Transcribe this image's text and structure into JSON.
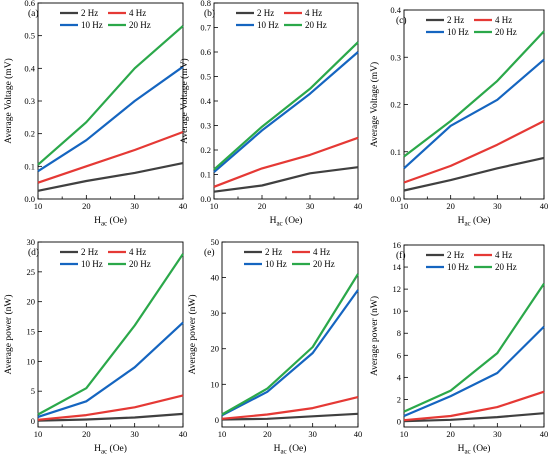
{
  "chart_data": [
    {
      "type": "line",
      "panel_label": "(a)",
      "xlabel": "H",
      "xlabel_sub": "ac",
      "xlabel_unit": " (Oe)",
      "ylabel": "Average Voltage (mV)",
      "x": [
        10,
        20,
        30,
        40
      ],
      "xlim": [
        10,
        40
      ],
      "xticks": [
        "10",
        "15",
        "20",
        "25",
        "30",
        "35",
        "40"
      ],
      "xtick_values": [
        10,
        15,
        20,
        25,
        30,
        35,
        40
      ],
      "ylim": [
        0.0,
        0.6
      ],
      "yticks": [
        "0.0",
        "0.1",
        "0.2",
        "0.3",
        "0.4",
        "0.5",
        "0.6"
      ],
      "ytick_values": [
        0.0,
        0.1,
        0.2,
        0.3,
        0.4,
        0.5,
        0.6
      ],
      "legend_position": "top",
      "series": [
        {
          "name": "2 Hz",
          "color": "#404040",
          "values": [
            0.025,
            0.055,
            0.08,
            0.11
          ]
        },
        {
          "name": "4 Hz",
          "color": "#e53935",
          "values": [
            0.05,
            0.1,
            0.15,
            0.205
          ]
        },
        {
          "name": "10 Hz",
          "color": "#1565c0",
          "values": [
            0.085,
            0.18,
            0.3,
            0.405
          ]
        },
        {
          "name": "20 Hz",
          "color": "#2ba84a",
          "values": [
            0.105,
            0.235,
            0.4,
            0.53
          ]
        }
      ]
    },
    {
      "type": "line",
      "panel_label": "(b)",
      "xlabel": "H",
      "xlabel_sub": "ac",
      "xlabel_unit": " (Oe)",
      "ylabel": "Average Voltage (mV)",
      "x": [
        10,
        20,
        30,
        40
      ],
      "xlim": [
        10,
        40
      ],
      "xticks": [
        "10",
        "15",
        "20",
        "25",
        "30",
        "35",
        "40"
      ],
      "xtick_values": [
        10,
        15,
        20,
        25,
        30,
        35,
        40
      ],
      "ylim": [
        0.0,
        0.8
      ],
      "yticks": [
        "0.0",
        "0.1",
        "0.2",
        "0.3",
        "0.4",
        "0.5",
        "0.6",
        "0.7",
        "0.8"
      ],
      "ytick_values": [
        0.0,
        0.1,
        0.2,
        0.3,
        0.4,
        0.5,
        0.6,
        0.7,
        0.8
      ],
      "legend_position": "top",
      "series": [
        {
          "name": "2 Hz",
          "color": "#404040",
          "values": [
            0.03,
            0.055,
            0.105,
            0.13
          ]
        },
        {
          "name": "4 Hz",
          "color": "#e53935",
          "values": [
            0.05,
            0.125,
            0.18,
            0.25
          ]
        },
        {
          "name": "10 Hz",
          "color": "#1565c0",
          "values": [
            0.11,
            0.28,
            0.43,
            0.6
          ]
        },
        {
          "name": "20 Hz",
          "color": "#2ba84a",
          "values": [
            0.12,
            0.295,
            0.45,
            0.64
          ]
        }
      ]
    },
    {
      "type": "line",
      "panel_label": "(c)",
      "xlabel": "H",
      "xlabel_sub": "ac",
      "xlabel_unit": " (Oe)",
      "ylabel": "Average Voltage (mV)",
      "x": [
        10,
        20,
        30,
        40
      ],
      "xlim": [
        10,
        40
      ],
      "xticks": [
        "10",
        "15",
        "20",
        "25",
        "30",
        "35",
        "40"
      ],
      "xtick_values": [
        10,
        15,
        20,
        25,
        30,
        35,
        40
      ],
      "ylim": [
        0.0,
        0.4
      ],
      "yticks": [
        "0.0",
        "0.1",
        "0.2",
        "0.3",
        "0.4"
      ],
      "ytick_values": [
        0.0,
        0.1,
        0.2,
        0.3,
        0.4
      ],
      "legend_position": "top",
      "series": [
        {
          "name": "2 Hz",
          "color": "#404040",
          "values": [
            0.018,
            0.04,
            0.065,
            0.087
          ]
        },
        {
          "name": "4 Hz",
          "color": "#e53935",
          "values": [
            0.035,
            0.07,
            0.115,
            0.165
          ]
        },
        {
          "name": "10 Hz",
          "color": "#1565c0",
          "values": [
            0.065,
            0.155,
            0.21,
            0.295
          ]
        },
        {
          "name": "20 Hz",
          "color": "#2ba84a",
          "values": [
            0.09,
            0.165,
            0.25,
            0.355
          ]
        }
      ]
    },
    {
      "type": "line",
      "panel_label": "(d)",
      "xlabel": "H",
      "xlabel_sub": "ac",
      "xlabel_unit": " (Oe)",
      "ylabel": "Average power (nW)",
      "x": [
        10,
        20,
        30,
        40
      ],
      "xlim": [
        10,
        40
      ],
      "xticks": [
        "10",
        "15",
        "20",
        "25",
        "30",
        "35",
        "40"
      ],
      "xtick_values": [
        10,
        15,
        20,
        25,
        30,
        35,
        40
      ],
      "ylim": [
        -1,
        30
      ],
      "yticks": [
        "0",
        "5",
        "10",
        "15",
        "20",
        "25",
        "30"
      ],
      "ytick_values": [
        0,
        5,
        10,
        15,
        20,
        25,
        30
      ],
      "legend_position": "top",
      "series": [
        {
          "name": "2 Hz",
          "color": "#404040",
          "values": [
            0.05,
            0.25,
            0.6,
            1.2
          ]
        },
        {
          "name": "4 Hz",
          "color": "#e53935",
          "values": [
            0.2,
            1.0,
            2.3,
            4.3
          ]
        },
        {
          "name": "10 Hz",
          "color": "#1565c0",
          "values": [
            0.7,
            3.3,
            9.0,
            16.5
          ]
        },
        {
          "name": "20 Hz",
          "color": "#2ba84a",
          "values": [
            1.1,
            5.5,
            16.0,
            28.0
          ]
        }
      ]
    },
    {
      "type": "line",
      "panel_label": "(e)",
      "xlabel": "H",
      "xlabel_sub": "ac",
      "xlabel_unit": " (Oe)",
      "ylabel": "Average power (nW)",
      "x": [
        10,
        20,
        30,
        40
      ],
      "xlim": [
        10,
        40
      ],
      "xticks": [
        "10",
        "15",
        "20",
        "25",
        "30",
        "35",
        "40"
      ],
      "xtick_values": [
        10,
        15,
        20,
        25,
        30,
        35,
        40
      ],
      "ylim": [
        -2,
        50
      ],
      "yticks": [
        "0",
        "10",
        "20",
        "30",
        "40",
        "50"
      ],
      "ytick_values": [
        0,
        10,
        20,
        30,
        40,
        50
      ],
      "legend_position": "top",
      "series": [
        {
          "name": "2 Hz",
          "color": "#404040",
          "values": [
            0.1,
            0.3,
            1.0,
            1.7
          ]
        },
        {
          "name": "4 Hz",
          "color": "#e53935",
          "values": [
            0.3,
            1.5,
            3.3,
            6.4
          ]
        },
        {
          "name": "10 Hz",
          "color": "#1565c0",
          "values": [
            1.3,
            7.9,
            18.8,
            36.5
          ]
        },
        {
          "name": "20 Hz",
          "color": "#2ba84a",
          "values": [
            1.5,
            8.8,
            20.5,
            41.0
          ]
        }
      ]
    },
    {
      "type": "line",
      "panel_label": "(f)",
      "xlabel": "H",
      "xlabel_sub": "ac",
      "xlabel_unit": " (Oe)",
      "ylabel": "Average power (nW)",
      "x": [
        10,
        20,
        30,
        40
      ],
      "xlim": [
        10,
        40
      ],
      "xticks": [
        "10",
        "15",
        "20",
        "25",
        "30",
        "35",
        "40"
      ],
      "xtick_values": [
        10,
        15,
        20,
        25,
        30,
        35,
        40
      ],
      "ylim": [
        -0.5,
        16
      ],
      "yticks": [
        "0",
        "2",
        "4",
        "6",
        "8",
        "10",
        "12",
        "14",
        "16"
      ],
      "ytick_values": [
        0,
        2,
        4,
        6,
        8,
        10,
        12,
        14,
        16
      ],
      "legend_position": "top",
      "series": [
        {
          "name": "2 Hz",
          "color": "#404040",
          "values": [
            0.03,
            0.15,
            0.4,
            0.75
          ]
        },
        {
          "name": "4 Hz",
          "color": "#e53935",
          "values": [
            0.12,
            0.5,
            1.3,
            2.7
          ]
        },
        {
          "name": "10 Hz",
          "color": "#1565c0",
          "values": [
            0.5,
            2.3,
            4.4,
            8.6
          ]
        },
        {
          "name": "20 Hz",
          "color": "#2ba84a",
          "values": [
            0.9,
            2.8,
            6.2,
            12.5
          ]
        }
      ]
    }
  ]
}
